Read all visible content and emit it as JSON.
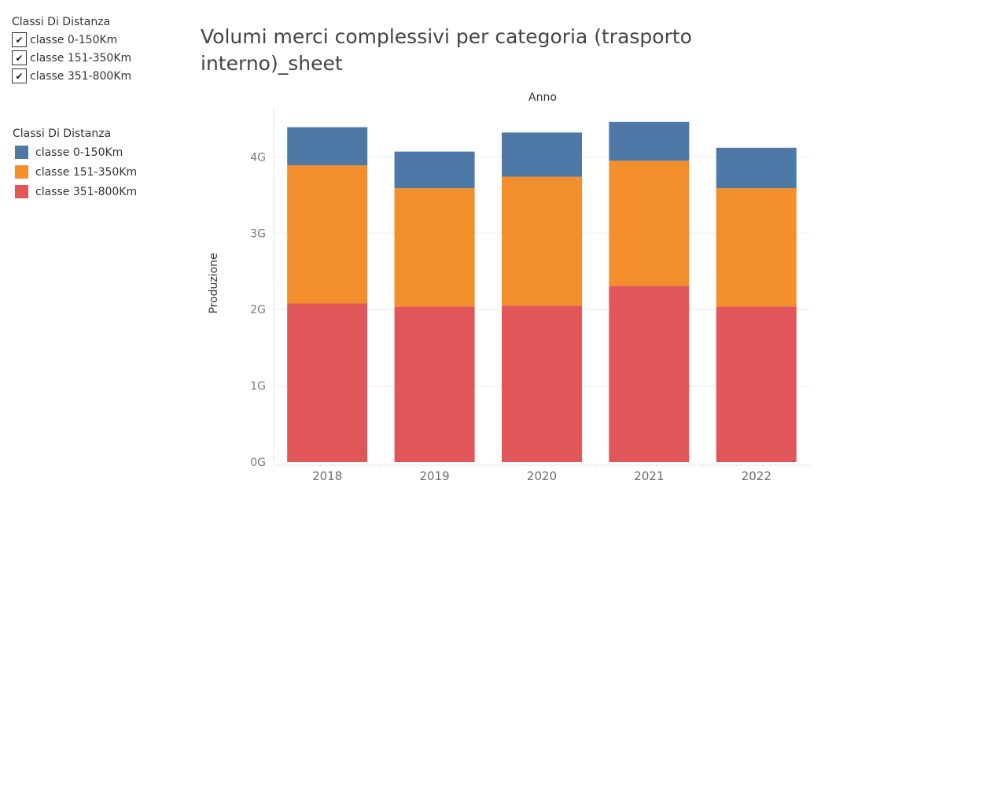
{
  "filter": {
    "title": "Classi Di Distanza",
    "check_glyph": "✔",
    "items": [
      {
        "label": "classe 0-150Km",
        "checked": true
      },
      {
        "label": "classe 151-350Km",
        "checked": true
      },
      {
        "label": "classe 351-800Km",
        "checked": true
      }
    ]
  },
  "legend": {
    "title": "Classi Di Distanza",
    "items": [
      {
        "label": "classe 0-150Km",
        "color": "#4e79a7"
      },
      {
        "label": "classe 151-350Km",
        "color": "#f28e2b"
      },
      {
        "label": "classe 351-800Km",
        "color": "#e15759"
      }
    ]
  },
  "chart_data": {
    "type": "bar",
    "stacked": true,
    "title": "Volumi merci complessivi per categoria (trasporto interno)_sheet",
    "xlabel": "Anno",
    "xlabel_position": "top",
    "ylabel": "Produzione",
    "categories": [
      "2018",
      "2019",
      "2020",
      "2021",
      "2022"
    ],
    "series": [
      {
        "name": "classe 351-800Km",
        "color": "#e15759",
        "values": [
          2.08,
          2.04,
          2.05,
          2.31,
          2.04
        ]
      },
      {
        "name": "classe 151-350Km",
        "color": "#f28e2b",
        "values": [
          1.81,
          1.55,
          1.69,
          1.64,
          1.55
        ]
      },
      {
        "name": "classe 0-150Km",
        "color": "#4e79a7",
        "values": [
          0.5,
          0.48,
          0.58,
          0.51,
          0.53
        ]
      }
    ],
    "unit": "G",
    "yticks": [
      {
        "value": 0,
        "label": "0G"
      },
      {
        "value": 1,
        "label": "1G"
      },
      {
        "value": 2,
        "label": "2G"
      },
      {
        "value": 3,
        "label": "3G"
      },
      {
        "value": 4,
        "label": "4G"
      }
    ],
    "ylim": [
      0,
      4.7
    ],
    "grid": true
  }
}
